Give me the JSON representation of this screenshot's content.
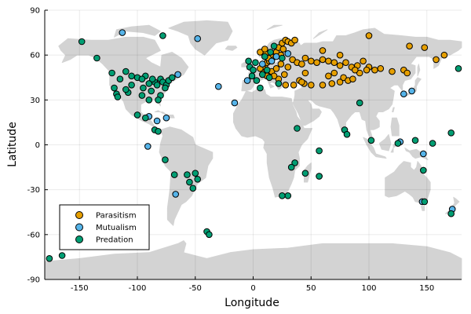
{
  "chart_data": {
    "type": "scatter",
    "title": "",
    "xlabel": "Longitude",
    "ylabel": "Latitude",
    "xlim": [
      -180,
      180
    ],
    "ylim": [
      -90,
      90
    ],
    "xticks": [
      -150,
      -100,
      -50,
      0,
      50,
      100,
      150
    ],
    "yticks": [
      -90,
      -60,
      -30,
      0,
      30,
      60,
      90
    ],
    "grid": true,
    "background": "world map (land masses in light gray)",
    "legend_position": "bottom-left",
    "colors": {
      "land": "#d3d3d3",
      "Parasitism": "#e69f00",
      "Mutualism": "#56b4e9",
      "Predation": "#009e73"
    },
    "series": [
      {
        "name": "Parasitism",
        "points": [
          [
            10,
            53
          ],
          [
            12,
            55
          ],
          [
            14,
            56
          ],
          [
            16,
            57
          ],
          [
            8,
            52
          ],
          [
            6,
            51
          ],
          [
            18,
            59
          ],
          [
            20,
            62
          ],
          [
            22,
            65
          ],
          [
            25,
            68
          ],
          [
            28,
            70
          ],
          [
            30,
            69
          ],
          [
            33,
            68
          ],
          [
            36,
            70
          ],
          [
            15,
            60
          ],
          [
            13,
            58
          ],
          [
            11,
            61
          ],
          [
            24,
            60
          ],
          [
            26,
            64
          ],
          [
            9,
            48
          ],
          [
            12,
            46
          ],
          [
            16,
            49
          ],
          [
            20,
            51
          ],
          [
            24,
            54
          ],
          [
            30,
            52
          ],
          [
            34,
            57
          ],
          [
            38,
            55
          ],
          [
            42,
            54
          ],
          [
            45,
            58
          ],
          [
            50,
            56
          ],
          [
            55,
            55
          ],
          [
            60,
            57
          ],
          [
            65,
            56
          ],
          [
            70,
            55
          ],
          [
            75,
            53
          ],
          [
            80,
            55
          ],
          [
            85,
            52
          ],
          [
            90,
            53
          ],
          [
            95,
            56
          ],
          [
            100,
            52
          ],
          [
            105,
            50
          ],
          [
            110,
            51
          ],
          [
            40,
            43
          ],
          [
            44,
            41
          ],
          [
            50,
            40
          ],
          [
            60,
            40
          ],
          [
            68,
            41
          ],
          [
            75,
            42
          ],
          [
            78,
            45
          ],
          [
            82,
            43
          ],
          [
            86,
            44
          ],
          [
            92,
            48
          ],
          [
            98,
            50
          ],
          [
            130,
            50
          ],
          [
            133,
            48
          ],
          [
            148,
            65
          ],
          [
            158,
            57
          ],
          [
            100,
            73
          ],
          [
            75,
            60
          ],
          [
            60,
            63
          ],
          [
            45,
            48
          ],
          [
            42,
            42
          ],
          [
            35,
            40
          ],
          [
            28,
            40
          ],
          [
            22,
            44
          ],
          [
            18,
            46
          ],
          [
            6,
            62
          ],
          [
            10,
            64
          ],
          [
            27,
            47
          ],
          [
            65,
            46
          ],
          [
            70,
            48
          ],
          [
            88,
            50
          ],
          [
            120,
            49
          ],
          [
            135,
            66
          ],
          [
            165,
            60
          ]
        ]
      },
      {
        "name": "Mutualism",
        "points": [
          [
            -113,
            75
          ],
          [
            -48,
            71
          ],
          [
            -65,
            47
          ],
          [
            -30,
            39
          ],
          [
            -16,
            28
          ],
          [
            -90,
            19
          ],
          [
            -83,
            16
          ],
          [
            -75,
            18
          ],
          [
            -91,
            -1
          ],
          [
            -67,
            -33
          ],
          [
            57,
            -21
          ],
          [
            127,
            2
          ],
          [
            130,
            34
          ],
          [
            147,
            -6
          ],
          [
            146,
            -38
          ],
          [
            172,
            -43
          ],
          [
            137,
            36
          ],
          [
            -5,
            43
          ],
          [
            20,
            59
          ],
          [
            30,
            61
          ],
          [
            16,
            56
          ],
          [
            8,
            54
          ]
        ]
      },
      {
        "name": "Predation",
        "points": [
          [
            -148,
            69
          ],
          [
            -78,
            73
          ],
          [
            -135,
            58
          ],
          [
            -122,
            48
          ],
          [
            -120,
            38
          ],
          [
            -115,
            44
          ],
          [
            -110,
            49
          ],
          [
            -105,
            40
          ],
          [
            -100,
            45
          ],
          [
            -95,
            38
          ],
          [
            -90,
            41
          ],
          [
            -88,
            36
          ],
          [
            -85,
            42
          ],
          [
            -83,
            40
          ],
          [
            -80,
            44
          ],
          [
            -78,
            42
          ],
          [
            -75,
            40
          ],
          [
            -73,
            43
          ],
          [
            -70,
            45
          ],
          [
            -76,
            38
          ],
          [
            -80,
            33
          ],
          [
            -82,
            30
          ],
          [
            -90,
            30
          ],
          [
            -96,
            33
          ],
          [
            -108,
            35
          ],
          [
            -118,
            34
          ],
          [
            -117,
            32
          ],
          [
            -100,
            20
          ],
          [
            -93,
            18
          ],
          [
            -85,
            10
          ],
          [
            -82,
            9
          ],
          [
            -76,
            -10
          ],
          [
            -57,
            -20
          ],
          [
            -55,
            -25
          ],
          [
            -50,
            -19
          ],
          [
            -48,
            -23
          ],
          [
            -52,
            -29
          ],
          [
            -40,
            -58
          ],
          [
            -38,
            -60
          ],
          [
            -176,
            -76
          ],
          [
            -165,
            -74
          ],
          [
            -4,
            56
          ],
          [
            -3,
            52
          ],
          [
            -1,
            46
          ],
          [
            3,
            43
          ],
          [
            6,
            38
          ],
          [
            0,
            50
          ],
          [
            2,
            55
          ],
          [
            10,
            59
          ],
          [
            15,
            62
          ],
          [
            18,
            66
          ],
          [
            25,
            58
          ],
          [
            14,
            45
          ],
          [
            22,
            41
          ],
          [
            8,
            47
          ],
          [
            12,
            50
          ],
          [
            38,
            11
          ],
          [
            36,
            -12
          ],
          [
            33,
            -15
          ],
          [
            30,
            -34
          ],
          [
            25,
            -34
          ],
          [
            45,
            -19
          ],
          [
            57,
            -4
          ],
          [
            57,
            -21
          ],
          [
            79,
            10
          ],
          [
            81,
            7
          ],
          [
            92,
            28
          ],
          [
            102,
            3
          ],
          [
            125,
            1
          ],
          [
            140,
            3
          ],
          [
            155,
            1
          ],
          [
            171,
            8
          ],
          [
            147,
            -17
          ],
          [
            148,
            -38
          ],
          [
            171,
            -46
          ],
          [
            180,
            51
          ],
          [
            -93,
            46
          ],
          [
            -87,
            44
          ],
          [
            -96,
            44
          ],
          [
            -105,
            46
          ],
          [
            -110,
            37
          ],
          [
            -68,
            -20
          ]
        ]
      }
    ]
  }
}
